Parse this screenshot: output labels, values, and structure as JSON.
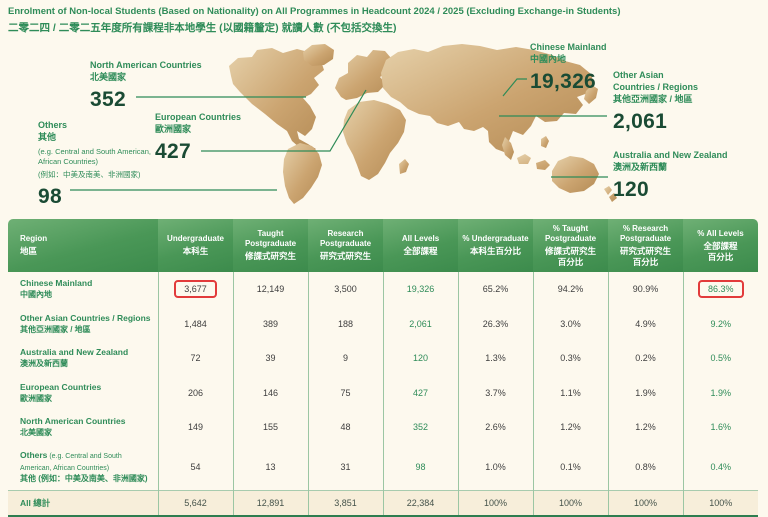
{
  "page": {
    "title_en": "Enrolment of Non-local Students (Based on Nationality) on All Programmes in Headcount 2024 / 2025 (Excluding Exchange-in Students)",
    "title_zh": "二零二四 / 二零二五年度所有課程非本地學生 (以國籍釐定) 就讀人數 (不包括交換生)"
  },
  "colors": {
    "accent_green": "#2f8c59",
    "header_green": "#4a9757",
    "map_gold": "#cfa977",
    "highlight_red": "#e23b3b",
    "background_cream": "#fdf9ee",
    "total_row_beige": "#f7eeda"
  },
  "map": {
    "labels": [
      {
        "name_en": "North American Countries",
        "name_zh": "北美國家",
        "value": "352"
      },
      {
        "name_en": "European Countries",
        "name_zh": "歐洲國家",
        "value": "427"
      },
      {
        "name_en": "Others",
        "name_zh": "其他",
        "note_en": "(e.g. Central and South American, African Countries)",
        "note_zh": "(例如：中美及南美、非洲國家)",
        "value": "98"
      },
      {
        "name_en": "Chinese Mainland",
        "name_zh": "中國內地",
        "value": "19,326"
      },
      {
        "name_en": "Other Asian\nCountries / Regions",
        "name_zh": "其他亞洲國家 / 地區",
        "value": "2,061"
      },
      {
        "name_en": "Australia and New Zealand",
        "name_zh": "澳洲及新西蘭",
        "value": "120"
      }
    ]
  },
  "table": {
    "headers": [
      {
        "en": "Region",
        "zh": "地區"
      },
      {
        "en": "Undergraduate",
        "zh": "本科生"
      },
      {
        "en": "Taught Postgraduate",
        "zh": "修課式研究生"
      },
      {
        "en": "Research Postgraduate",
        "zh": "研究式研究生"
      },
      {
        "en": "All Levels",
        "zh": "全部課程"
      },
      {
        "en": "% Undergraduate",
        "zh": "本科生百分比"
      },
      {
        "en": "% Taught Postgraduate",
        "zh": "修課式研究生\n百分比"
      },
      {
        "en": "% Research Postgraduate",
        "zh": "研究式研究生\n百分比"
      },
      {
        "en": "% All Levels",
        "zh": "全部課程\n百分比"
      }
    ],
    "rows": [
      {
        "region_en": "Chinese Mainland",
        "region_zh": "中國內地",
        "values": [
          "3,677",
          "12,149",
          "3,500",
          "19,326",
          "65.2%",
          "94.2%",
          "90.9%",
          "86.3%"
        ],
        "highlight": [
          0,
          7
        ]
      },
      {
        "region_en": "Other Asian Countries / Regions",
        "region_zh": "其他亞洲國家 / 地區",
        "values": [
          "1,484",
          "389",
          "188",
          "2,061",
          "26.3%",
          "3.0%",
          "4.9%",
          "9.2%"
        ]
      },
      {
        "region_en": "Australia and New Zealand",
        "region_zh": "澳洲及新西蘭",
        "values": [
          "72",
          "39",
          "9",
          "120",
          "1.3%",
          "0.3%",
          "0.2%",
          "0.5%"
        ]
      },
      {
        "region_en": "European Countries",
        "region_zh": "歐洲國家",
        "values": [
          "206",
          "146",
          "75",
          "427",
          "3.7%",
          "1.1%",
          "1.9%",
          "1.9%"
        ]
      },
      {
        "region_en": "North American Countries",
        "region_zh": "北美國家",
        "values": [
          "149",
          "155",
          "48",
          "352",
          "2.6%",
          "1.2%",
          "1.2%",
          "1.6%"
        ]
      },
      {
        "region_en": "Others",
        "region_note": "(e.g. Central and South American, African Countries)",
        "region_zh": "其他 (例如：中美及南美、非洲國家)",
        "values": [
          "54",
          "13",
          "31",
          "98",
          "1.0%",
          "0.1%",
          "0.8%",
          "0.4%"
        ]
      }
    ],
    "total_row": {
      "label": "All 總計",
      "values": [
        "5,642",
        "12,891",
        "3,851",
        "22,384",
        "100%",
        "100%",
        "100%",
        "100%"
      ]
    }
  }
}
